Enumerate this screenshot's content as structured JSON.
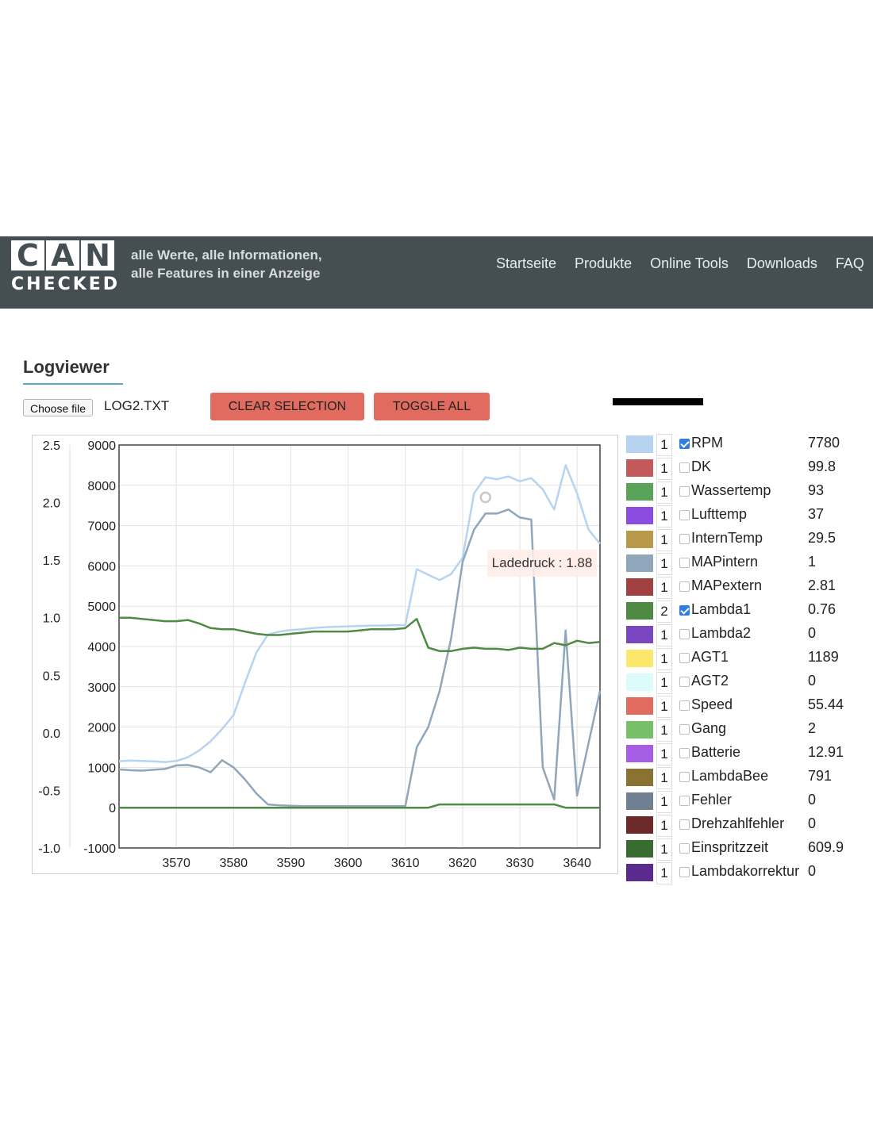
{
  "brand": {
    "logo_letters": [
      "C",
      "A",
      "N"
    ],
    "logo_sub": "CHECKED",
    "tagline_line1": "alle Werte, alle Informationen,",
    "tagline_line2": "alle Features in einer Anzeige"
  },
  "nav": [
    {
      "label": "Startseite"
    },
    {
      "label": "Produkte"
    },
    {
      "label": "Online Tools"
    },
    {
      "label": "Downloads"
    },
    {
      "label": "FAQ"
    }
  ],
  "page": {
    "title": "Logviewer"
  },
  "file": {
    "button_label": "Choose file",
    "name": "LOG2.TXT"
  },
  "buttons": {
    "clear": "CLEAR SELECTION",
    "toggle": "TOGGLE ALL"
  },
  "tooltip": {
    "text": "Ladedruck : 1.88"
  },
  "legend": [
    {
      "color": "#b6d4f0",
      "axis": "1",
      "checked": true,
      "name": "RPM",
      "value": "7780"
    },
    {
      "color": "#c3595a",
      "axis": "1",
      "checked": false,
      "name": "DK",
      "value": "99.8"
    },
    {
      "color": "#5aa35a",
      "axis": "1",
      "checked": false,
      "name": "Wassertemp",
      "value": "93"
    },
    {
      "color": "#8a4de0",
      "axis": "1",
      "checked": false,
      "name": "Lufttemp",
      "value": "37"
    },
    {
      "color": "#b89a4a",
      "axis": "1",
      "checked": false,
      "name": "InternTemp",
      "value": "29.5"
    },
    {
      "color": "#8fa6bb",
      "axis": "1",
      "checked": false,
      "name": "MAPintern",
      "value": "1"
    },
    {
      "color": "#a04040",
      "axis": "1",
      "checked": false,
      "name": "MAPextern",
      "value": "2.81"
    },
    {
      "color": "#4f8a45",
      "axis": "2",
      "checked": true,
      "name": "Lambda1",
      "value": "0.76"
    },
    {
      "color": "#7a46c0",
      "axis": "1",
      "checked": false,
      "name": "Lambda2",
      "value": "0"
    },
    {
      "color": "#fbe76a",
      "axis": "1",
      "checked": false,
      "name": "AGT1",
      "value": "1189"
    },
    {
      "color": "#dcfbfb",
      "axis": "1",
      "checked": false,
      "name": "AGT2",
      "value": "0"
    },
    {
      "color": "#e06b5e",
      "axis": "1",
      "checked": false,
      "name": "Speed",
      "value": "55.44"
    },
    {
      "color": "#76c06a",
      "axis": "1",
      "checked": false,
      "name": "Gang",
      "value": "2"
    },
    {
      "color": "#a65ee6",
      "axis": "1",
      "checked": false,
      "name": "Batterie",
      "value": "12.91"
    },
    {
      "color": "#8a7233",
      "axis": "1",
      "checked": false,
      "name": "LambdaBee",
      "value": "791"
    },
    {
      "color": "#6f8190",
      "axis": "1",
      "checked": false,
      "name": "Fehler",
      "value": "0"
    },
    {
      "color": "#6e2a2a",
      "axis": "1",
      "checked": false,
      "name": "Drehzahlfehler",
      "value": "0"
    },
    {
      "color": "#386c30",
      "axis": "1",
      "checked": false,
      "name": "Einspritzzeit",
      "value": "609.9"
    },
    {
      "color": "#5a2a8f",
      "axis": "1",
      "checked": false,
      "name": "Lambdakorrektur",
      "value": "0"
    }
  ],
  "chart_data": {
    "type": "line",
    "xlim": [
      3560,
      3644
    ],
    "x_ticks": [
      3570,
      3580,
      3590,
      3600,
      3610,
      3620,
      3630,
      3640
    ],
    "y1_ticks": [
      -1000,
      0,
      1000,
      2000,
      3000,
      4000,
      5000,
      6000,
      7000,
      8000,
      9000
    ],
    "y1lim": [
      -1000,
      9000
    ],
    "y2_ticks": [
      "-1.0",
      "-0.5",
      "0.0",
      "0.5",
      "1.0",
      "1.5",
      "2.0",
      "2.5"
    ],
    "y2lim": [
      -1.0,
      2.5
    ],
    "grid": true,
    "series": [
      {
        "color": "#b6d4f0",
        "axis": "y1",
        "x": [
          3560,
          3562,
          3564,
          3566,
          3568,
          3570,
          3572,
          3574,
          3576,
          3578,
          3580,
          3582,
          3584,
          3586,
          3588,
          3590,
          3592,
          3594,
          3596,
          3598,
          3600,
          3602,
          3604,
          3606,
          3608,
          3610,
          3612,
          3614,
          3616,
          3618,
          3620,
          3622,
          3624,
          3626,
          3628,
          3630,
          3632,
          3634,
          3636,
          3638,
          3640,
          3642,
          3644
        ],
        "y": [
          1150,
          1170,
          1160,
          1150,
          1130,
          1160,
          1250,
          1420,
          1650,
          1950,
          2300,
          3100,
          3850,
          4300,
          4370,
          4410,
          4430,
          4460,
          4480,
          4490,
          4500,
          4510,
          4520,
          4520,
          4530,
          4530,
          5920,
          5780,
          5650,
          5800,
          6200,
          7800,
          8200,
          8150,
          8220,
          8100,
          8180,
          7900,
          7400,
          8500,
          7800,
          6900,
          6550
        ]
      },
      {
        "color": "#8fa6bb",
        "axis": "y1",
        "x": [
          3560,
          3562,
          3564,
          3566,
          3568,
          3570,
          3572,
          3574,
          3576,
          3578,
          3580,
          3582,
          3584,
          3586,
          3588,
          3590,
          3592,
          3594,
          3596,
          3598,
          3600,
          3602,
          3604,
          3606,
          3608,
          3610,
          3612,
          3614,
          3616,
          3618,
          3620,
          3622,
          3624,
          3626,
          3628,
          3630,
          3632,
          3634,
          3636,
          3638,
          3640,
          3642,
          3644
        ],
        "y": [
          950,
          930,
          920,
          940,
          960,
          1050,
          1060,
          1000,
          880,
          1180,
          1000,
          700,
          350,
          80,
          60,
          50,
          40,
          40,
          40,
          40,
          40,
          40,
          40,
          40,
          40,
          40,
          1500,
          2000,
          2900,
          4200,
          6100,
          6900,
          7300,
          7300,
          7400,
          7200,
          7150,
          1000,
          200,
          4400,
          300,
          1600,
          2900
        ]
      },
      {
        "color": "#4f8a45",
        "axis": "y2",
        "x": [
          3560,
          3562,
          3564,
          3566,
          3568,
          3570,
          3572,
          3574,
          3576,
          3578,
          3580,
          3582,
          3584,
          3586,
          3588,
          3590,
          3592,
          3594,
          3596,
          3598,
          3600,
          3602,
          3604,
          3606,
          3608,
          3610,
          3612,
          3614,
          3616,
          3618,
          3620,
          3622,
          3624,
          3626,
          3628,
          3630,
          3632,
          3634,
          3636,
          3638,
          3640,
          3642,
          3644
        ],
        "y": [
          1.0,
          1.0,
          0.99,
          0.98,
          0.97,
          0.97,
          0.98,
          0.95,
          0.91,
          0.9,
          0.9,
          0.88,
          0.86,
          0.85,
          0.85,
          0.86,
          0.87,
          0.88,
          0.88,
          0.88,
          0.88,
          0.89,
          0.9,
          0.9,
          0.9,
          0.91,
          0.99,
          0.74,
          0.71,
          0.71,
          0.73,
          0.74,
          0.73,
          0.73,
          0.72,
          0.74,
          0.73,
          0.73,
          0.78,
          0.76,
          0.8,
          0.78,
          0.79
        ]
      },
      {
        "color": "#4f8a45",
        "axis": "y1",
        "x": [
          3560,
          3570,
          3580,
          3590,
          3600,
          3610,
          3614,
          3616,
          3620,
          3630,
          3636,
          3638,
          3644
        ],
        "y": [
          0,
          0,
          0,
          0,
          0,
          0,
          0,
          80,
          80,
          80,
          80,
          0,
          0
        ]
      }
    ]
  }
}
